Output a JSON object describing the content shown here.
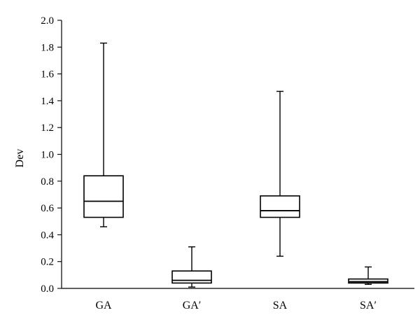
{
  "chart_data": {
    "type": "box",
    "ylabel": "Dev",
    "xlabel": "",
    "ylim": [
      0,
      2.0
    ],
    "yticks": [
      "0.0",
      "0.2",
      "0.4",
      "0.6",
      "0.8",
      "1.0",
      "1.2",
      "1.4",
      "1.6",
      "1.8",
      "2.0"
    ],
    "categories": [
      "GA",
      "GA′",
      "SA",
      "SA′"
    ],
    "boxes": [
      {
        "category": "GA",
        "min": 0.46,
        "q1": 0.53,
        "median": 0.65,
        "q3": 0.84,
        "max": 1.83
      },
      {
        "category": "GA′",
        "min": 0.01,
        "q1": 0.04,
        "median": 0.06,
        "q3": 0.13,
        "max": 0.31
      },
      {
        "category": "SA",
        "min": 0.24,
        "q1": 0.53,
        "median": 0.58,
        "q3": 0.69,
        "max": 1.47
      },
      {
        "category": "SA′",
        "min": 0.03,
        "q1": 0.04,
        "median": 0.05,
        "q3": 0.07,
        "max": 0.16
      }
    ],
    "grid": false,
    "legend": "none"
  }
}
